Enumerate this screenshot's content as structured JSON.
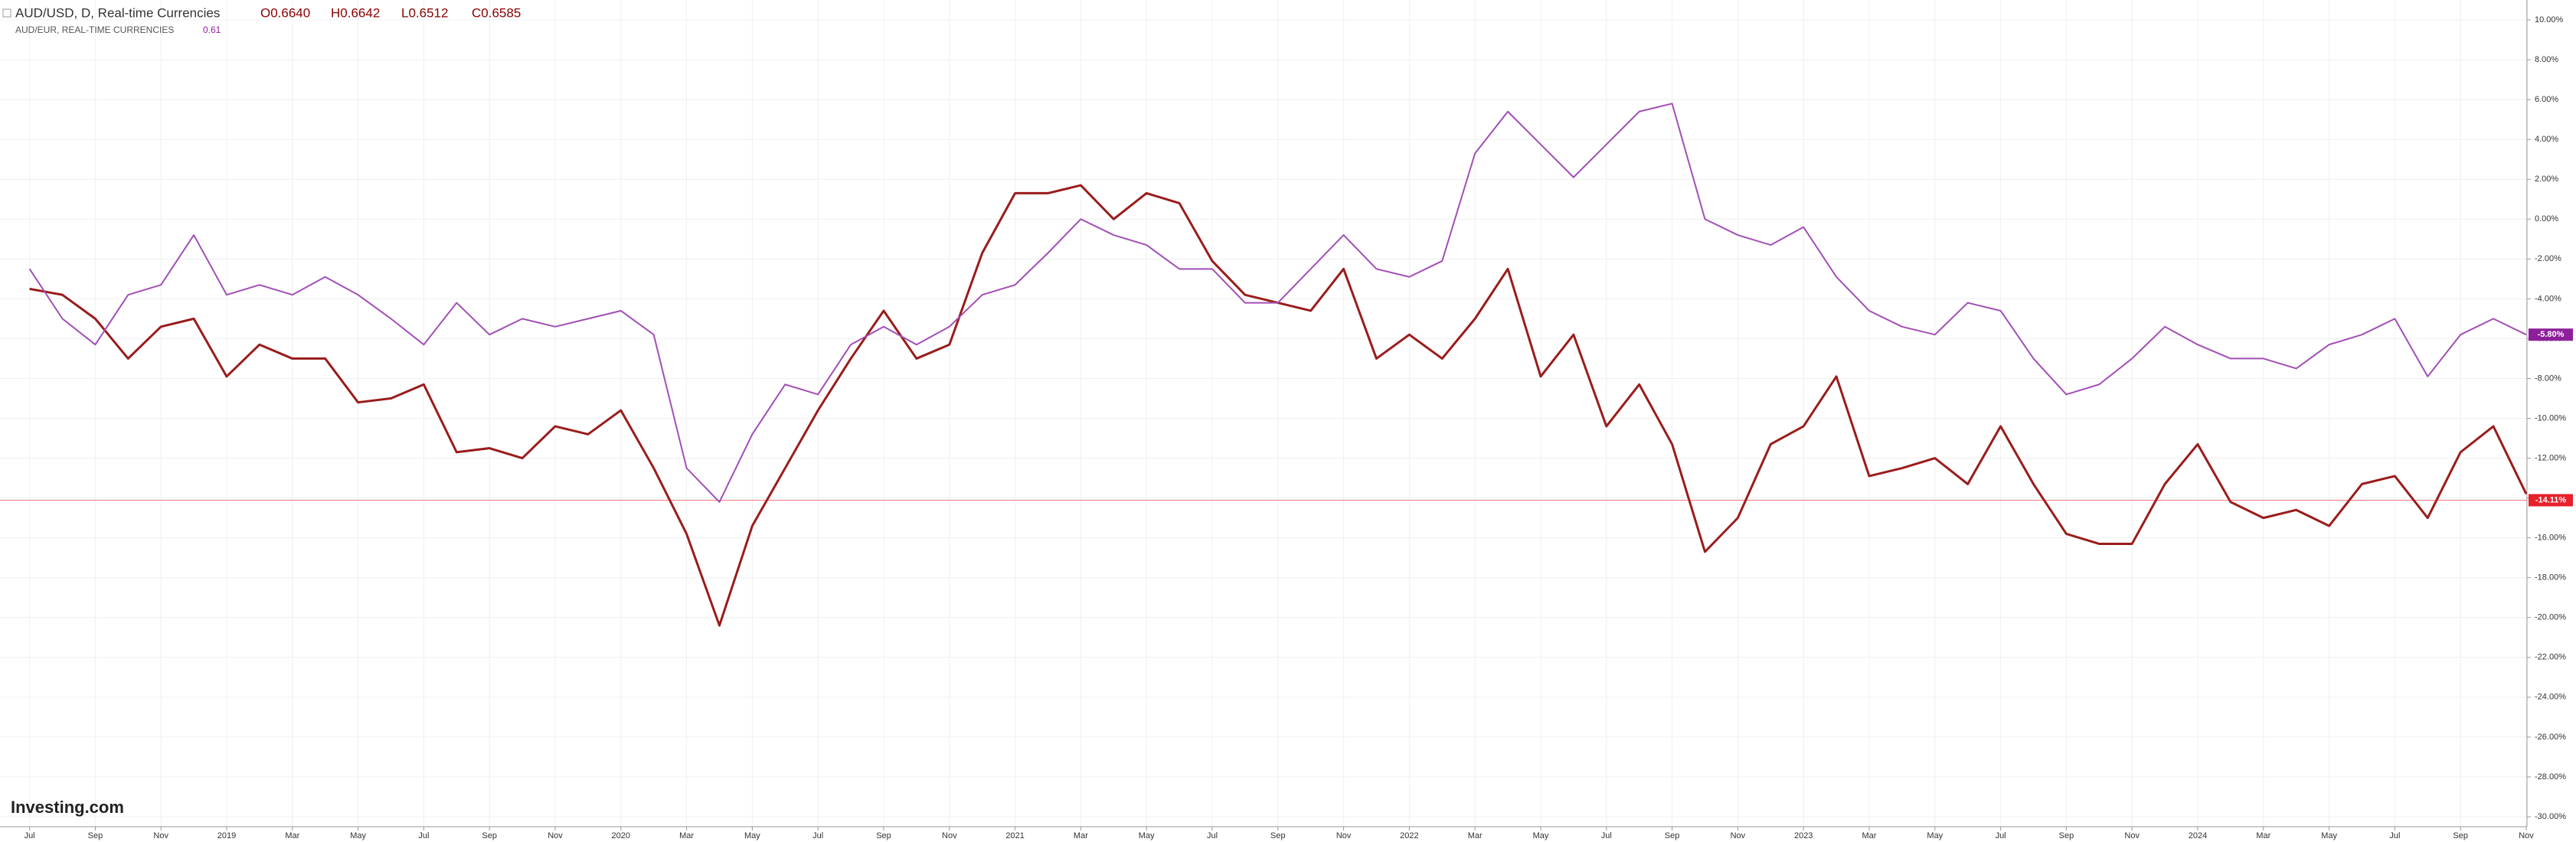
{
  "chart_data": {
    "type": "line",
    "title": "AUD/USD, D, Real-time Currencies",
    "ohlc": [
      "O0.6640",
      "H0.6642",
      "L0.6512",
      "C0.6585"
    ],
    "compare_title": "AUD/EUR, REAL-TIME CURRENCIES",
    "compare_value": "0.61",
    "logo": "Investing.com",
    "x": [
      "2018-07",
      "2018-08",
      "2018-09",
      "2018-10",
      "2018-11",
      "2018-12",
      "2019-01",
      "2019-02",
      "2019-03",
      "2019-04",
      "2019-05",
      "2019-06",
      "2019-07",
      "2019-08",
      "2019-09",
      "2019-10",
      "2019-11",
      "2019-12",
      "2020-01",
      "2020-02",
      "2020-03",
      "2020-04",
      "2020-05",
      "2020-06",
      "2020-07",
      "2020-08",
      "2020-09",
      "2020-10",
      "2020-11",
      "2020-12",
      "2021-01",
      "2021-02",
      "2021-03",
      "2021-04",
      "2021-05",
      "2021-06",
      "2021-07",
      "2021-08",
      "2021-09",
      "2021-10",
      "2021-11",
      "2021-12",
      "2022-01",
      "2022-02",
      "2022-03",
      "2022-04",
      "2022-05",
      "2022-06",
      "2022-07",
      "2022-08",
      "2022-09",
      "2022-10",
      "2022-11",
      "2022-12",
      "2023-01",
      "2023-02",
      "2023-03",
      "2023-04",
      "2023-05",
      "2023-06",
      "2023-07",
      "2023-08",
      "2023-09",
      "2023-10",
      "2023-11",
      "2023-12",
      "2024-01",
      "2024-02",
      "2024-03",
      "2024-04",
      "2024-05",
      "2024-06",
      "2024-07",
      "2024-08",
      "2024-09",
      "2024-10",
      "2024-11"
    ],
    "series": [
      {
        "name": "AUD/USD",
        "color": "#9a1c1c",
        "values": [
          -3.5,
          -3.8,
          -5,
          -7,
          -5.4,
          -5,
          -7.9,
          -6.3,
          -7,
          -7,
          -9.2,
          -9,
          -8.3,
          -11.7,
          -11.5,
          -12,
          -10.4,
          -10.8,
          -9.6,
          -12.5,
          -15.8,
          -20.4,
          -15.4,
          -12.5,
          -9.6,
          -7,
          -4.6,
          -7,
          -6.3,
          -1.7,
          1.3,
          1.3,
          1.7,
          0,
          1.3,
          0.8,
          -2.1,
          -3.8,
          -4.2,
          -4.6,
          -2.5,
          -7,
          -5.8,
          -7,
          -5,
          -2.5,
          -7.9,
          -5.8,
          -10.4,
          -8.3,
          -11.3,
          -16.7,
          -15,
          -11.3,
          -10.4,
          -7.9,
          -12.9,
          -12.5,
          -12,
          -13.3,
          -10.4,
          -13.3,
          -15.8,
          -16.3,
          -16.3,
          -13.3,
          -11.3,
          -14.2,
          -15,
          -14.6,
          -15.4,
          -13.3,
          -12.9,
          -15,
          -11.7,
          -10.4,
          -13.8
        ],
        "last": {
          "value": -14.11,
          "label": "-14.11%",
          "color": "#e8202a"
        }
      },
      {
        "name": "AUD/EUR",
        "color": "#a24fb5",
        "values": [
          -2.5,
          -5,
          -6.3,
          -3.8,
          -3.3,
          -0.8,
          -3.8,
          -3.3,
          -3.8,
          -2.9,
          -3.8,
          -5,
          -6.3,
          -4.2,
          -5.8,
          -5,
          -5.4,
          -5,
          -4.6,
          -5.8,
          -12.5,
          -14.2,
          -10.8,
          -8.3,
          -8.8,
          -6.3,
          -5.4,
          -6.3,
          -5.4,
          -3.8,
          -3.3,
          -1.7,
          0,
          -0.8,
          -1.3,
          -2.5,
          -2.5,
          -4.2,
          -4.2,
          -2.5,
          -0.8,
          -2.5,
          -2.9,
          -2.1,
          3.3,
          5.4,
          3.75,
          2.1,
          3.75,
          5.4,
          5.8,
          0,
          -0.8,
          -1.3,
          -0.4,
          -2.9,
          -4.6,
          -5.4,
          -5.8,
          -4.2,
          -4.6,
          -7,
          -8.8,
          -8.3,
          -7,
          -5.4,
          -6.3,
          -7,
          -7,
          -7.5,
          -6.3,
          -5.8,
          -5,
          -7.9,
          -5.8,
          -5,
          -5.8
        ],
        "last": {
          "value": -5.8,
          "label": "-5.80%",
          "color": "#8e1f9a"
        }
      }
    ],
    "ylim": [
      -30.5,
      11
    ],
    "yticks": [
      {
        "value": 10,
        "label": "10.00%"
      },
      {
        "value": 8,
        "label": "8.00%"
      },
      {
        "value": 6,
        "label": "6.00%"
      },
      {
        "value": 4,
        "label": "4.00%"
      },
      {
        "value": 2,
        "label": "2.00%"
      },
      {
        "value": 0,
        "label": "0.00%"
      },
      {
        "value": -2,
        "label": "-2.00%"
      },
      {
        "value": -4,
        "label": "-4.00%"
      },
      {
        "value": -6,
        "label": "-6.00%"
      },
      {
        "value": -8,
        "label": "-8.00%"
      },
      {
        "value": -10,
        "label": "-10.00%"
      },
      {
        "value": -12,
        "label": "-12.00%"
      },
      {
        "value": -14,
        "label": "-14.00%"
      },
      {
        "value": -16,
        "label": "-16.00%"
      },
      {
        "value": -18,
        "label": "-18.00%"
      },
      {
        "value": -20,
        "label": "-20.00%"
      },
      {
        "value": -22,
        "label": "-22.00%"
      },
      {
        "value": -24,
        "label": "-24.00%"
      },
      {
        "value": -26,
        "label": "-26.00%"
      },
      {
        "value": -28,
        "label": "-28.00%"
      },
      {
        "value": -30,
        "label": "-30.00%"
      }
    ],
    "xticks": [
      {
        "value": "2018-07",
        "label": "Jul"
      },
      {
        "value": "2018-09",
        "label": "Sep"
      },
      {
        "value": "2018-11",
        "label": "Nov"
      },
      {
        "value": "2019-01",
        "label": "2019"
      },
      {
        "value": "2019-03",
        "label": "Mar"
      },
      {
        "value": "2019-05",
        "label": "May"
      },
      {
        "value": "2019-07",
        "label": "Jul"
      },
      {
        "value": "2019-09",
        "label": "Sep"
      },
      {
        "value": "2019-11",
        "label": "Nov"
      },
      {
        "value": "2020-01",
        "label": "2020"
      },
      {
        "value": "2020-03",
        "label": "Mar"
      },
      {
        "value": "2020-05",
        "label": "May"
      },
      {
        "value": "2020-07",
        "label": "Jul"
      },
      {
        "value": "2020-09",
        "label": "Sep"
      },
      {
        "value": "2020-11",
        "label": "Nov"
      },
      {
        "value": "2021-01",
        "label": "2021"
      },
      {
        "value": "2021-03",
        "label": "Mar"
      },
      {
        "value": "2021-05",
        "label": "May"
      },
      {
        "value": "2021-07",
        "label": "Jul"
      },
      {
        "value": "2021-09",
        "label": "Sep"
      },
      {
        "value": "2021-11",
        "label": "Nov"
      },
      {
        "value": "2022-01",
        "label": "2022"
      },
      {
        "value": "2022-03",
        "label": "Mar"
      },
      {
        "value": "2022-05",
        "label": "May"
      },
      {
        "value": "2022-07",
        "label": "Jul"
      },
      {
        "value": "2022-09",
        "label": "Sep"
      },
      {
        "value": "2022-11",
        "label": "Nov"
      },
      {
        "value": "2023-01",
        "label": "2023"
      },
      {
        "value": "2023-03",
        "label": "Mar"
      },
      {
        "value": "2023-05",
        "label": "May"
      },
      {
        "value": "2023-07",
        "label": "Jul"
      },
      {
        "value": "2023-09",
        "label": "Sep"
      },
      {
        "value": "2023-11",
        "label": "Nov"
      },
      {
        "value": "2024-01",
        "label": "2024"
      },
      {
        "value": "2024-03",
        "label": "Mar"
      },
      {
        "value": "2024-05",
        "label": "May"
      },
      {
        "value": "2024-07",
        "label": "Jul"
      },
      {
        "value": "2024-09",
        "label": "Sep"
      },
      {
        "value": "2024-11",
        "label": "Nov"
      }
    ],
    "grid": true
  }
}
